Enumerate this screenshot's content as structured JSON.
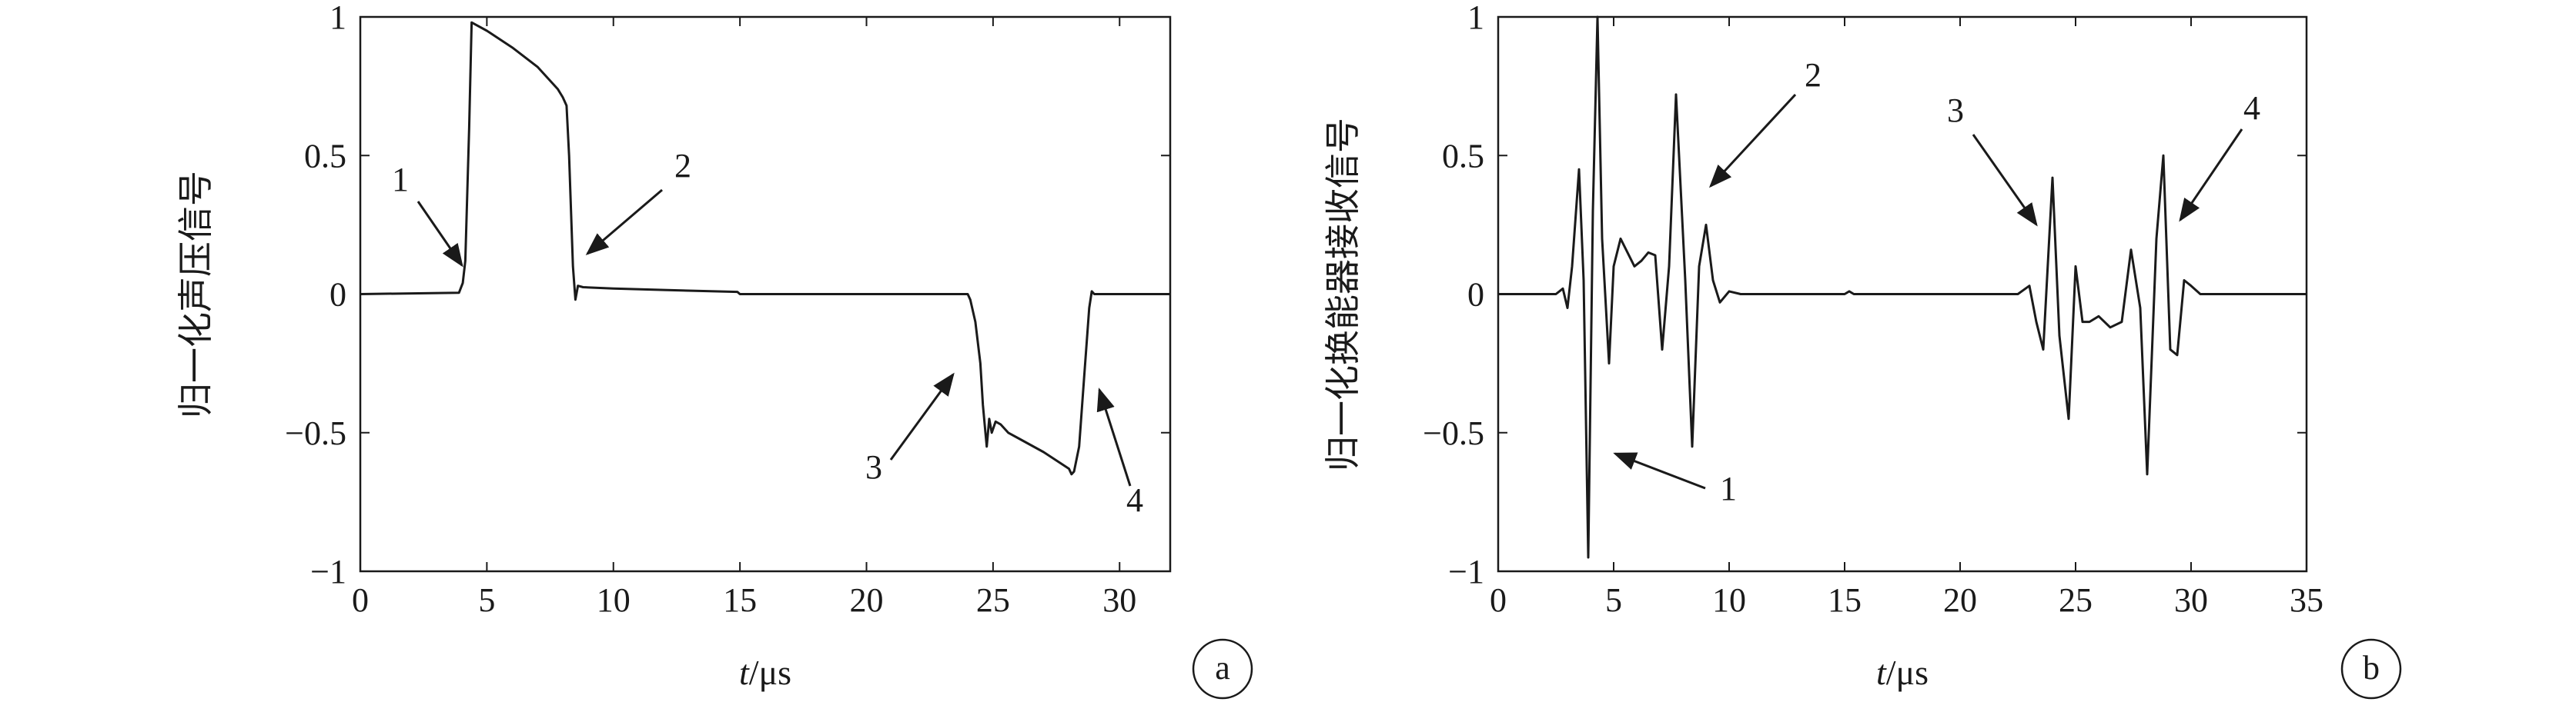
{
  "chart_data": [
    {
      "id": "a",
      "type": "line",
      "panel_label": "a",
      "xlabel": {
        "italic": "t",
        "rest": "/μs"
      },
      "ylabel": "归一化声压信号",
      "xlim": [
        0,
        32
      ],
      "ylim": [
        -1,
        1
      ],
      "xticks": [
        0,
        5,
        10,
        15,
        20,
        25,
        30
      ],
      "xtick_labels": [
        "0",
        "5",
        "10",
        "15",
        "20",
        "25",
        "30"
      ],
      "yticks": [
        -1,
        -0.5,
        0,
        0.5,
        1
      ],
      "ytick_labels": [
        "−1",
        "−0.5",
        "0",
        "0.5",
        "1"
      ],
      "grid": false,
      "series": [
        {
          "x": [
            0,
            3.9,
            4.05,
            4.15,
            4.3,
            4.4,
            5.0,
            6.0,
            7.0,
            7.8,
            8.0,
            8.15,
            8.25,
            8.4,
            8.5,
            8.6,
            8.8,
            10,
            12,
            14,
            14.9,
            15.0,
            17,
            20,
            23,
            24.0,
            24.1,
            24.3,
            24.5,
            24.6,
            24.7,
            24.75,
            24.85,
            24.95,
            25.1,
            25.3,
            25.6,
            26,
            27,
            28,
            28.1,
            28.2,
            28.4,
            28.6,
            28.8,
            28.9,
            29.0,
            29.1,
            29.3,
            30,
            32
          ],
          "y": [
            0,
            0.005,
            0.04,
            0.12,
            0.6,
            0.98,
            0.95,
            0.89,
            0.82,
            0.74,
            0.71,
            0.68,
            0.5,
            0.1,
            -0.02,
            0.03,
            0.025,
            0.02,
            0.015,
            0.01,
            0.008,
            0,
            0,
            0,
            0,
            0,
            -0.02,
            -0.1,
            -0.25,
            -0.4,
            -0.5,
            -0.55,
            -0.45,
            -0.5,
            -0.46,
            -0.47,
            -0.5,
            -0.52,
            -0.57,
            -0.63,
            -0.65,
            -0.64,
            -0.55,
            -0.3,
            -0.05,
            0.01,
            0.0,
            0.0,
            0,
            0,
            0
          ]
        }
      ],
      "annotations": [
        {
          "label": "1",
          "x": 4.2,
          "y": 0.15
        },
        {
          "label": "2",
          "x": 8.8,
          "y": 0.18
        },
        {
          "label": "3",
          "x": 23.8,
          "y": -0.25
        },
        {
          "label": "4",
          "x": 29.2,
          "y": -0.3
        }
      ]
    },
    {
      "id": "b",
      "type": "line",
      "panel_label": "b",
      "xlabel": {
        "italic": "t",
        "rest": "/μs"
      },
      "ylabel": "归一化换能器接收信号",
      "xlim": [
        0,
        35
      ],
      "ylim": [
        -1,
        1
      ],
      "xticks": [
        0,
        5,
        10,
        15,
        20,
        25,
        30,
        35
      ],
      "xtick_labels": [
        "0",
        "5",
        "10",
        "15",
        "20",
        "25",
        "30",
        "35"
      ],
      "yticks": [
        -1,
        -0.5,
        0,
        0.5,
        1
      ],
      "ytick_labels": [
        "−1",
        "−0.5",
        "0",
        "0.5",
        "1"
      ],
      "grid": false,
      "series": [
        {
          "x": [
            0,
            2.5,
            2.8,
            3.0,
            3.2,
            3.5,
            3.7,
            3.9,
            4.1,
            4.3,
            4.5,
            4.8,
            5.0,
            5.3,
            5.6,
            5.9,
            6.2,
            6.5,
            6.8,
            7.1,
            7.4,
            7.7,
            8.1,
            8.4,
            8.7,
            9.0,
            9.3,
            9.6,
            10.0,
            10.5,
            11,
            15,
            15.2,
            15.4,
            16,
            22.5,
            23.0,
            23.3,
            23.6,
            24.0,
            24.3,
            24.7,
            25.0,
            25.3,
            25.6,
            26.0,
            26.5,
            27.0,
            27.4,
            27.8,
            28.1,
            28.5,
            28.8,
            29.1,
            29.4,
            29.7,
            30.0,
            30.4,
            31,
            35
          ],
          "y": [
            0,
            0,
            0.02,
            -0.05,
            0.1,
            0.45,
            0.05,
            -0.95,
            0.3,
            1.0,
            0.2,
            -0.25,
            0.1,
            0.2,
            0.15,
            0.1,
            0.12,
            0.15,
            0.14,
            -0.2,
            0.1,
            0.72,
            0.05,
            -0.55,
            0.1,
            0.25,
            0.05,
            -0.03,
            0.01,
            0,
            0,
            0,
            0.01,
            0,
            0,
            0,
            0.03,
            -0.1,
            -0.2,
            0.42,
            -0.15,
            -0.45,
            0.1,
            -0.1,
            -0.1,
            -0.08,
            -0.12,
            -0.1,
            0.16,
            -0.05,
            -0.65,
            0.2,
            0.5,
            -0.2,
            -0.22,
            0.05,
            0.03,
            0,
            0,
            0
          ]
        }
      ],
      "annotations": [
        {
          "label": "1",
          "x": 5.3,
          "y": -0.65
        },
        {
          "label": "2",
          "x": 9.3,
          "y": 0.4
        },
        {
          "label": "3",
          "x": 23.3,
          "y": 0.28
        },
        {
          "label": "4",
          "x": 29.5,
          "y": 0.28
        }
      ]
    }
  ]
}
